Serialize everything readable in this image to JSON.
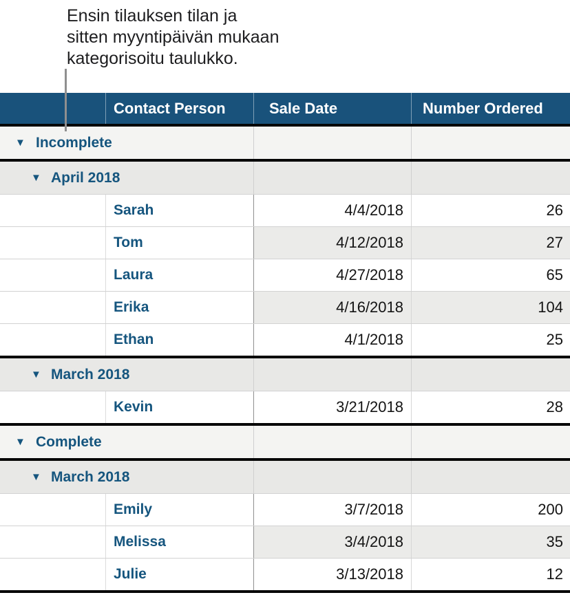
{
  "annotation": {
    "line1": "Ensin tilauksen tilan ja",
    "line2": "sitten myyntipäivän mukaan",
    "line3": "kategorisoitu taulukko."
  },
  "glyphs": {
    "disclosure": "▼"
  },
  "colors": {
    "header_bg": "#19527B",
    "category_text": "#15557E",
    "level0_category_bg": "#F4F4F2",
    "level1_category_bg": "#E8E8E6",
    "alt_cell_bg": "#EBEBE9",
    "thick_border": "#050505"
  },
  "table": {
    "headers": {
      "col2": "Contact Person",
      "col3": "Sale Date",
      "col4": "Number Ordered"
    },
    "rows": [
      {
        "type": "category",
        "level": 0,
        "label": "Incomplete"
      },
      {
        "type": "category",
        "level": 1,
        "label": "April 2018"
      },
      {
        "type": "data",
        "contact": "Sarah",
        "sale_date": "4/4/2018",
        "number_ordered": "26"
      },
      {
        "type": "data",
        "contact": "Tom",
        "sale_date": "4/12/2018",
        "number_ordered": "27",
        "alt": true
      },
      {
        "type": "data",
        "contact": "Laura",
        "sale_date": "4/27/2018",
        "number_ordered": "65"
      },
      {
        "type": "data",
        "contact": "Erika",
        "sale_date": "4/16/2018",
        "number_ordered": "104",
        "alt": true
      },
      {
        "type": "data",
        "contact": "Ethan",
        "sale_date": "4/1/2018",
        "number_ordered": "25"
      },
      {
        "type": "category",
        "level": 1,
        "label": "March 2018"
      },
      {
        "type": "data",
        "contact": "Kevin",
        "sale_date": "3/21/2018",
        "number_ordered": "28"
      },
      {
        "type": "category",
        "level": 0,
        "label": "Complete"
      },
      {
        "type": "category",
        "level": 1,
        "label": "March 2018"
      },
      {
        "type": "data",
        "contact": "Emily",
        "sale_date": "3/7/2018",
        "number_ordered": "200"
      },
      {
        "type": "data",
        "contact": "Melissa",
        "sale_date": "3/4/2018",
        "number_ordered": "35",
        "alt": true
      },
      {
        "type": "data",
        "contact": "Julie",
        "sale_date": "3/13/2018",
        "number_ordered": "12"
      }
    ]
  }
}
